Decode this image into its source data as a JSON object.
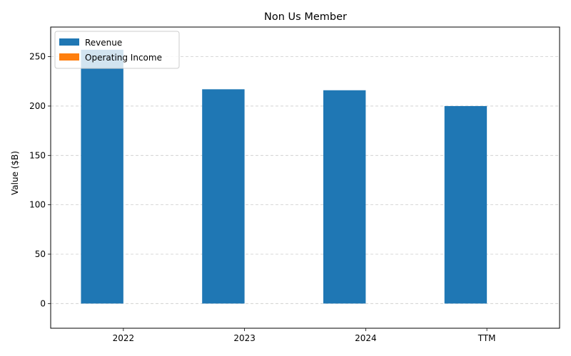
{
  "chart_data": {
    "type": "bar",
    "title": "Non Us Member",
    "xlabel": "",
    "ylabel": "Value ($B)",
    "categories": [
      "2022",
      "2023",
      "2024",
      "TTM"
    ],
    "series": [
      {
        "name": "Revenue",
        "values": [
          257,
          217,
          216,
          200
        ],
        "color": "#1f77b4"
      },
      {
        "name": "Operating Income",
        "values": [
          0,
          0,
          0,
          0
        ],
        "color": "#ff7f0e"
      }
    ],
    "ylim": [
      -25,
      280
    ],
    "yticks": [
      0,
      50,
      100,
      150,
      200,
      250
    ],
    "grid": "y-dashed",
    "legend_position": "top-left"
  }
}
